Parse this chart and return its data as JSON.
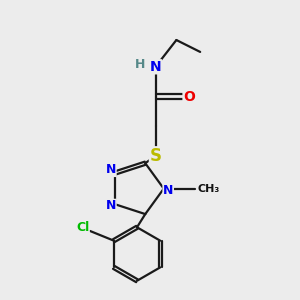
{
  "bg_color": "#ececec",
  "bond_color": "#1a1a1a",
  "bond_lw": 1.6,
  "atom_colors": {
    "N": "#0000ee",
    "O": "#ee0000",
    "S": "#bbbb00",
    "Cl": "#00bb00",
    "C": "#111111",
    "H": "#558888"
  },
  "font_size": 10,
  "fig_size": [
    3.0,
    3.0
  ],
  "dpi": 100
}
